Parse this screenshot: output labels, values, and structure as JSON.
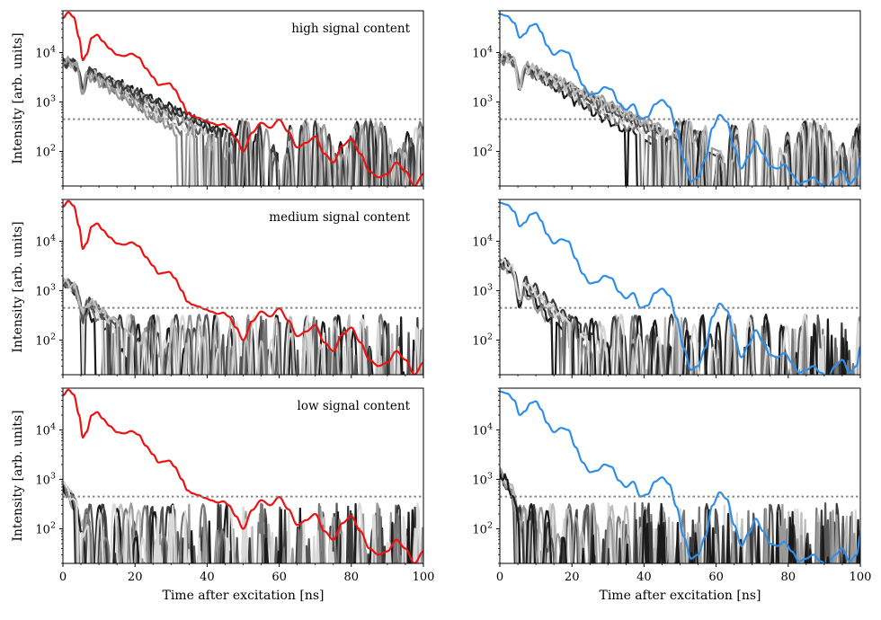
{
  "figure": {
    "xlabel": "Time after excitation [ns]",
    "ylabel": "Intensity [arb. units]"
  },
  "chart_data": {
    "type": "line",
    "yscale": "log",
    "xlim": [
      0,
      100
    ],
    "ylim": [
      20,
      70000
    ],
    "xticks": [
      0,
      20,
      40,
      60,
      80,
      100
    ],
    "yticks": [
      {
        "value": 100,
        "mantissa": "10",
        "exp": "2"
      },
      {
        "value": 1000,
        "mantissa": "10",
        "exp": "3"
      },
      {
        "value": 10000,
        "mantissa": "10",
        "exp": "4"
      }
    ],
    "threshold": 450,
    "colors": {
      "left_reference": "#ee1111",
      "right_reference": "#2f8fe8",
      "threshold": "#888888",
      "grays": [
        "#1a1a1a",
        "#3a3a3a",
        "#555555",
        "#777777",
        "#999999",
        "#bbbbbb",
        "#d9d9d9"
      ]
    },
    "rows": [
      {
        "title": "high signal content",
        "level": "high"
      },
      {
        "title": "medium signal content",
        "level": "medium"
      },
      {
        "title": "low signal content",
        "level": "low"
      }
    ],
    "reference_curves": {
      "left": {
        "name": "red reference",
        "x": [
          0,
          1.5,
          3,
          4.5,
          5.5,
          6.5,
          8,
          9.5,
          11,
          13,
          15,
          17,
          19,
          21,
          23,
          25,
          26.5,
          28,
          29.5,
          31,
          33,
          34.5,
          36,
          37.5,
          39.5,
          41,
          43,
          44.5,
          46,
          48,
          50,
          52.5,
          55,
          57.5,
          60,
          62.5,
          65,
          67.5,
          70,
          72.5,
          75,
          77.5,
          80,
          82.5,
          85,
          87.5,
          90,
          92.5,
          95,
          97.5,
          100
        ],
        "y": [
          50000,
          65000,
          52000,
          20000,
          7000,
          9000,
          20000,
          23000,
          17000,
          12000,
          9000,
          8500,
          9500,
          8000,
          4800,
          3200,
          2200,
          2300,
          2400,
          1800,
          1000,
          600,
          520,
          480,
          420,
          380,
          340,
          360,
          300,
          180,
          100,
          240,
          380,
          300,
          440,
          250,
          120,
          150,
          200,
          90,
          60,
          130,
          180,
          90,
          40,
          30,
          35,
          60,
          40,
          20,
          35
        ]
      },
      "right": {
        "name": "blue reference",
        "x": [
          0,
          2,
          4,
          5.5,
          7,
          8.5,
          10,
          11.5,
          13,
          15,
          17,
          19,
          21,
          23,
          25,
          27,
          29,
          31,
          33,
          35,
          37,
          39,
          41,
          43,
          45,
          47,
          49,
          51,
          53,
          55,
          57,
          59,
          61,
          63,
          65,
          67,
          69,
          71,
          73,
          75,
          77,
          79,
          81,
          83,
          85,
          87,
          89,
          91,
          93,
          95,
          97,
          99,
          100
        ],
        "y": [
          60000,
          55000,
          40000,
          20000,
          24000,
          35000,
          38000,
          26000,
          14000,
          9000,
          11000,
          10000,
          4500,
          2200,
          1400,
          1500,
          2000,
          1800,
          950,
          700,
          900,
          450,
          500,
          900,
          1100,
          800,
          280,
          70,
          25,
          30,
          70,
          300,
          550,
          400,
          120,
          45,
          80,
          160,
          90,
          50,
          45,
          55,
          35,
          22,
          25,
          30,
          22,
          18,
          30,
          40,
          22,
          30,
          75
        ]
      }
    },
    "noisy_traces": {
      "series_count": 7,
      "note": "Dark-to-light gray repeated measurements per panel; signal decays into noise with clipped low-intensity lobes."
    }
  }
}
